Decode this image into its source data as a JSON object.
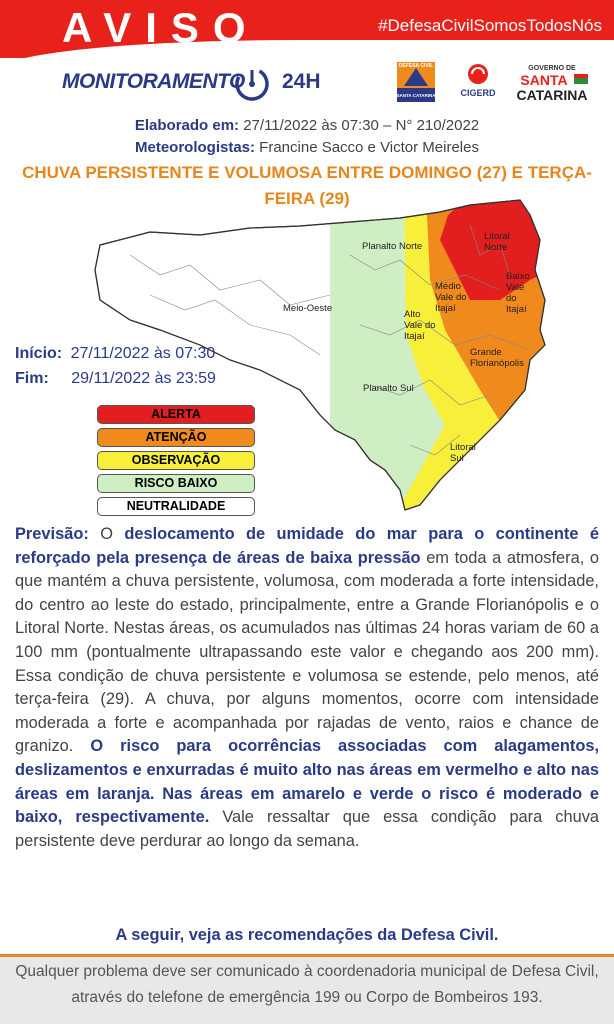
{
  "header": {
    "title": "AVISO",
    "hashtag": "#DefesaCivilSomosTodosNós"
  },
  "logos": {
    "monitor": "MONITORAMENTO",
    "hours": "24H",
    "defesa_civil": "DEFESA CIVIL",
    "defesa_civil_state": "SANTA CATARINA",
    "cigerd": "CIGERD",
    "governo": "GOVERNO DE",
    "governo_state_1": "SANTA",
    "governo_state_2": "CATARINA"
  },
  "meta": {
    "prepared_label": "Elaborado em:",
    "prepared_value": "27/11/2022 às 07:30 – N° 210/2022",
    "meteorologists_label": "Meteorologistas:",
    "meteorologists_value": "Francine Sacco e Victor Meireles"
  },
  "headline": "CHUVA PERSISTENTE E VOLUMOSA ENTRE DOMINGO (27) E TERÇA-FEIRA (29)",
  "map": {
    "regions": [
      "Litoral Norte",
      "Planalto Norte",
      "Meio-Oeste",
      "Médio Vale do Itajaí",
      "Baixo Vale do Itajaí",
      "Alto Vale do Itajaí",
      "Grande Florianópolis",
      "Planalto Sul",
      "Litoral Sul"
    ]
  },
  "period": {
    "start_label": "Início:",
    "start_value": "27/11/2022 às 07:30",
    "end_label": "Fim:",
    "end_value": "29/11/2022 às 23:59"
  },
  "legend": [
    {
      "label": "ALERTA",
      "color": "#e31e1e"
    },
    {
      "label": "ATENÇÃO",
      "color": "#f08a1c"
    },
    {
      "label": "OBSERVAÇÃO",
      "color": "#f7ef3a"
    },
    {
      "label": "RISCO BAIXO",
      "color": "#cfeec3"
    },
    {
      "label": "NEUTRALIDADE",
      "color": "#ffffff"
    }
  ],
  "forecast": [
    {
      "text": "Previsão:",
      "bold": true
    },
    {
      "text": " O ",
      "bold": false
    },
    {
      "text": "deslocamento de umidade do mar para o continente é reforçado pela presença de áreas de baixa pressão",
      "bold": true
    },
    {
      "text": " em toda a atmosfera, o que mantém a chuva persistente, volumosa, com moderada a forte intensidade, do centro ao leste do estado, principalmente, entre a Grande Florianópolis e o Litoral Norte. Nestas áreas, os acumulados nas últimas 24 horas variam de 60 a 100 mm (pontualmente ultrapassando este valor e chegando aos 200 mm). Essa condição de chuva persistente e volumosa se estende, pelo menos, até terça-feira (29). A chuva, por alguns momentos, ocorre com intensidade moderada a forte e acompanhada por rajadas de vento, raios e chance de granizo. ",
      "bold": false
    },
    {
      "text": "O risco para ocorrências associadas com alagamentos, deslizamentos e enxurradas é muito alto nas áreas em vermelho e alto nas áreas em laranja. Nas áreas em amarelo e verde o risco é moderado e baixo, respectivamente.",
      "bold": true
    },
    {
      "text": " Vale ressaltar que essa condição para chuva persistente deve perdurar ao longo da semana.",
      "bold": false
    }
  ],
  "recommendation": "A seguir, veja as recomendações da Defesa Civil.",
  "footer": {
    "line1": "Qualquer problema deve ser comunicado à coordenadoria municipal de Defesa Civil,",
    "line2": "através do telefone de emergência 199 ou Corpo de Bombeiros 193."
  }
}
